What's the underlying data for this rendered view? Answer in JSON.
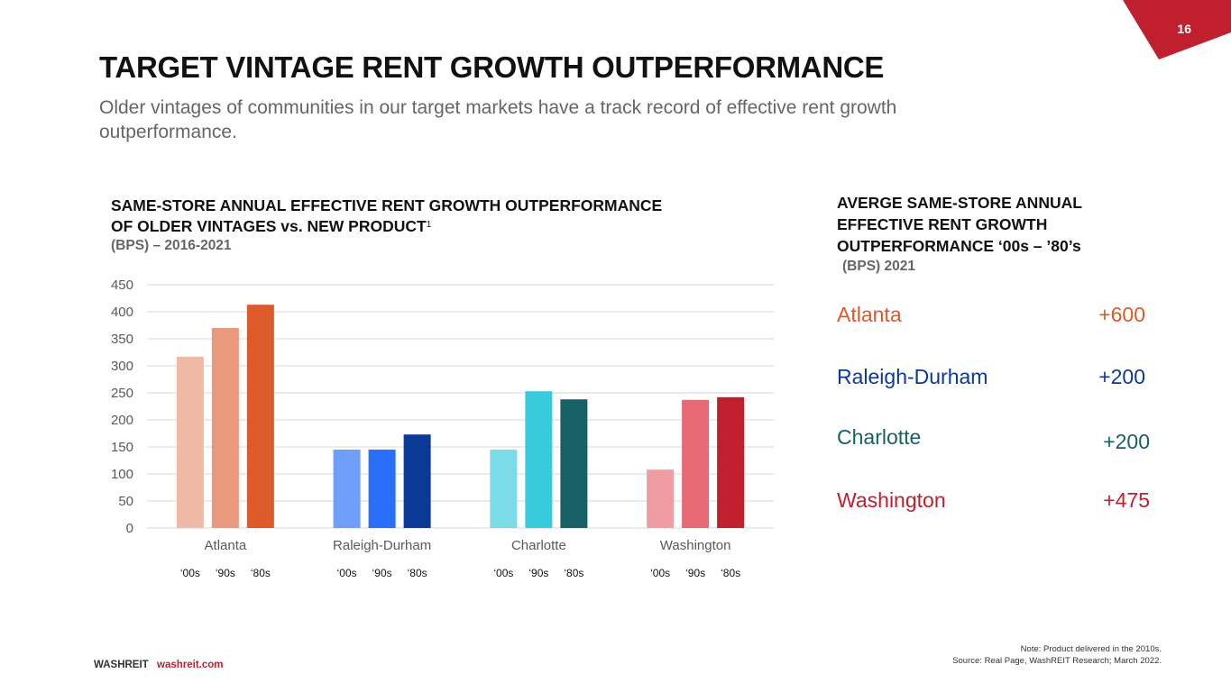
{
  "page": {
    "number": "16",
    "title": "TARGET VINTAGE RENT GROWTH OUTPERFORMANCE",
    "subtitle": "Older vintages of communities in our target markets have a track record of effective rent growth outperformance."
  },
  "colors": {
    "brand_red": "#c0202e",
    "atlanta": "#dd5a2b",
    "raleigh_durham": "#0a3a96",
    "charlotte": "#176166",
    "washington": "#c0202e"
  },
  "left_panel": {
    "title": "SAME-STORE ANNUAL EFFECTIVE RENT GROWTH OUTPERFORMANCE OF OLDER VINTAGES vs. NEW PRODUCT",
    "footnote_marker": "1",
    "unit": "(BPS) – 2016-2021"
  },
  "chart_data": {
    "type": "bar",
    "title": "SAME-STORE ANNUAL EFFECTIVE RENT GROWTH OUTPERFORMANCE OF OLDER VINTAGES vs. NEW PRODUCT (BPS) – 2016-2021",
    "xlabel": "",
    "ylabel": "",
    "ylim": [
      0,
      450
    ],
    "yticks": [
      0,
      50,
      100,
      150,
      200,
      250,
      300,
      350,
      400,
      450
    ],
    "grid": true,
    "legend": "none",
    "categories": [
      "Atlanta",
      "Raleigh-Durham",
      "Charlotte",
      "Washington"
    ],
    "sub_labels": [
      "‘00s",
      "‘90s",
      "‘80s"
    ],
    "groups": [
      {
        "name": "Atlanta",
        "values": [
          317,
          370,
          413
        ],
        "colors": [
          "#f0b9a5",
          "#e99a7e",
          "#dd5a2b"
        ]
      },
      {
        "name": "Raleigh-Durham",
        "values": [
          145,
          145,
          173
        ],
        "colors": [
          "#6f9ff8",
          "#2a6ffa",
          "#0a3a96"
        ]
      },
      {
        "name": "Charlotte",
        "values": [
          145,
          253,
          238
        ],
        "colors": [
          "#7bdbe7",
          "#38cbde",
          "#176166"
        ]
      },
      {
        "name": "Washington",
        "values": [
          108,
          237,
          242
        ],
        "colors": [
          "#ef9da3",
          "#e66b76",
          "#c0202e"
        ]
      }
    ]
  },
  "right_panel": {
    "title": "AVERGE SAME-STORE ANNUAL EFFECTIVE RENT GROWTH OUTPERFORMANCE  ‘00s – ’80’s",
    "unit": "(BPS) 2021",
    "rows": [
      {
        "name": "Atlanta",
        "value": "+600",
        "color": "#dd5a2b"
      },
      {
        "name": "Raleigh-Durham",
        "value": "+200",
        "color": "#0a3a96"
      },
      {
        "name": "Charlotte",
        "value": "+200",
        "color": "#176166"
      },
      {
        "name": "Washington",
        "value": "+475",
        "color": "#c0202e"
      }
    ]
  },
  "footer": {
    "brand": "WASHREIT",
    "url": "washreit.com",
    "note": "Note: Product delivered in the 2010s.",
    "source": "Source: Real Page, WashREIT Research; March 2022."
  }
}
